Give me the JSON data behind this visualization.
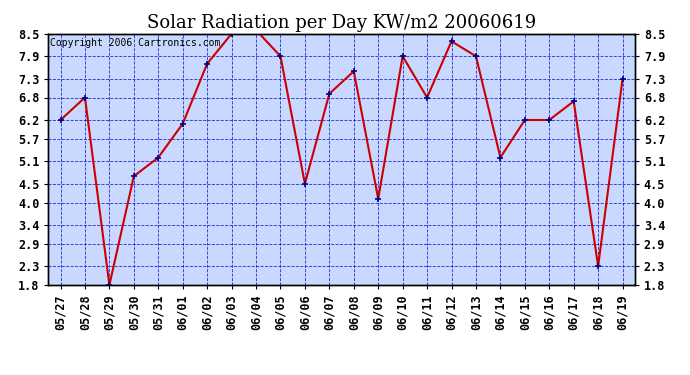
{
  "title": "Solar Radiation per Day KW/m2 20060619",
  "copyright": "Copyright 2006 Cartronics.com",
  "dates": [
    "05/27",
    "05/28",
    "05/29",
    "05/30",
    "05/31",
    "06/01",
    "06/02",
    "06/03",
    "06/04",
    "06/05",
    "06/06",
    "06/07",
    "06/08",
    "06/09",
    "06/10",
    "06/11",
    "06/12",
    "06/13",
    "06/14",
    "06/15",
    "06/16",
    "06/17",
    "06/18",
    "06/19"
  ],
  "values": [
    6.2,
    6.8,
    1.8,
    4.7,
    5.2,
    6.1,
    7.7,
    8.5,
    8.6,
    7.9,
    4.5,
    6.9,
    7.5,
    4.1,
    7.9,
    6.8,
    8.3,
    7.9,
    5.2,
    6.2,
    6.2,
    6.7,
    2.3,
    7.3
  ],
  "ylim_low": 1.8,
  "ylim_high": 8.5,
  "yticks": [
    1.8,
    2.3,
    2.9,
    3.4,
    4.0,
    4.5,
    5.1,
    5.7,
    6.2,
    6.8,
    7.3,
    7.9,
    8.5
  ],
  "line_color": "#cc0000",
  "marker_color": "#00008b",
  "bg_color": "#c8d8ff",
  "grid_color": "#0000cc",
  "border_color": "#000000",
  "title_fontsize": 13,
  "copyright_fontsize": 7,
  "tick_fontsize": 8.5
}
